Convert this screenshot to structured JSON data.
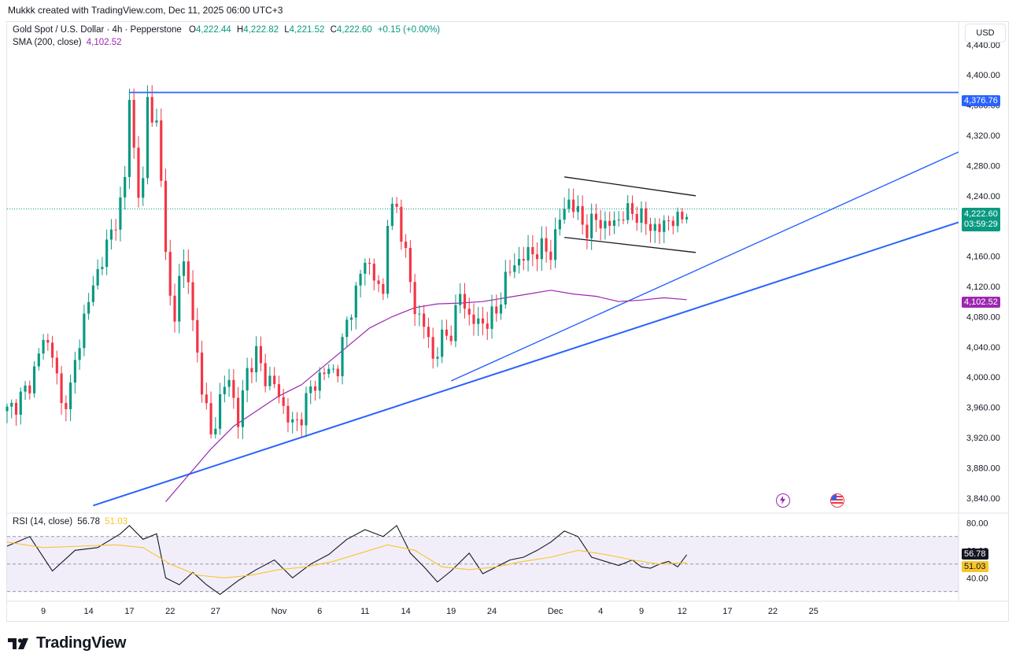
{
  "header": {
    "text": "Mukkk created with TradingView.com, Dec 11, 2025 06:00 UTC+3"
  },
  "legend": {
    "symbol": "Gold Spot / U.S. Dollar · 4h · Pepperstone",
    "open_label": "O",
    "open": "4,222.44",
    "high_label": "H",
    "high": "4,222.82",
    "low_label": "L",
    "low": "4,221.52",
    "close_label": "C",
    "close": "4,222.60",
    "change": "+0.15 (+0.00%)",
    "sma_label": "SMA (200, close)",
    "sma_value": "4,102.52",
    "rsi_label": "RSI (14, close)",
    "rsi_value": "56.78",
    "rsi_ma_value": "51.03"
  },
  "currency_button": "USD",
  "tags": {
    "resistance": "4,376.76",
    "last_price": "4,222.60",
    "countdown": "03:59:29",
    "sma": "4,102.52",
    "rsi": "56.78",
    "rsi_ma": "51.03"
  },
  "branding": {
    "name": "TradingView"
  },
  "icons": {
    "events": [
      "lightning-event-icon",
      "us-flag-event-icon"
    ]
  },
  "colors": {
    "up": "#089981",
    "down": "#f23645",
    "sma": "#9c27b0",
    "trend": "#2962ff",
    "rsi": "#131722",
    "rsi_ma": "#f7c52b",
    "rsi_band": "#7e57c2"
  },
  "chart_data": [
    {
      "type": "candlestick",
      "title": "Gold Spot / U.S. Dollar · 4h · Pepperstone",
      "y_ticks": [
        "4,440.00",
        "4,400.00",
        "4,360.00",
        "4,320.00",
        "4,280.00",
        "4,240.00",
        "4,200.00",
        "4,160.00",
        "4,120.00",
        "4,080.00",
        "4,040.00",
        "4,000.00",
        "3,960.00",
        "3,920.00",
        "3,880.00",
        "3,840.00"
      ],
      "x_ticks": [
        "9",
        "14",
        "17",
        "22",
        "27",
        "Nov",
        "6",
        "11",
        "14",
        "19",
        "24",
        "Dec",
        "4",
        "9",
        "12",
        "17",
        "22",
        "25"
      ],
      "ylim": [
        3820,
        4470
      ],
      "price_path": [
        [
          0,
          3955
        ],
        [
          2,
          3965
        ],
        [
          5,
          3990
        ],
        [
          8,
          4050
        ],
        [
          10,
          4035
        ],
        [
          12,
          3960
        ],
        [
          14,
          3985
        ],
        [
          17,
          4080
        ],
        [
          20,
          4140
        ],
        [
          23,
          4190
        ],
        [
          25,
          4230
        ],
        [
          26,
          4260
        ],
        [
          27,
          4375
        ],
        [
          28,
          4300
        ],
        [
          29,
          4240
        ],
        [
          30,
          4260
        ],
        [
          31,
          4368
        ],
        [
          33,
          4330
        ],
        [
          35,
          4180
        ],
        [
          36,
          4100
        ],
        [
          37,
          4070
        ],
        [
          38,
          4140
        ],
        [
          39,
          4150
        ],
        [
          40,
          4130
        ],
        [
          41,
          4070
        ],
        [
          43,
          3990
        ],
        [
          45,
          3920
        ],
        [
          47,
          3970
        ],
        [
          49,
          4000
        ],
        [
          51,
          3940
        ],
        [
          53,
          4010
        ],
        [
          55,
          4030
        ],
        [
          57,
          4000
        ],
        [
          59,
          3990
        ],
        [
          61,
          3960
        ],
        [
          63,
          3935
        ],
        [
          65,
          3950
        ],
        [
          67,
          3985
        ],
        [
          69,
          4000
        ],
        [
          71,
          4010
        ],
        [
          73,
          4010
        ],
        [
          75,
          4075
        ],
        [
          77,
          4110
        ],
        [
          79,
          4160
        ],
        [
          81,
          4130
        ],
        [
          83,
          4110
        ],
        [
          84,
          4210
        ],
        [
          86,
          4225
        ],
        [
          88,
          4160
        ],
        [
          90,
          4090
        ],
        [
          92,
          4070
        ],
        [
          94,
          4025
        ],
        [
          96,
          4050
        ],
        [
          98,
          4060
        ],
        [
          100,
          4110
        ],
        [
          102,
          4080
        ],
        [
          104,
          4070
        ],
        [
          106,
          4075
        ],
        [
          108,
          4085
        ],
        [
          110,
          4130
        ],
        [
          112,
          4150
        ],
        [
          114,
          4160
        ],
        [
          116,
          4165
        ],
        [
          118,
          4170
        ],
        [
          120,
          4165
        ],
        [
          122,
          4210
        ],
        [
          124,
          4235
        ],
        [
          126,
          4215
        ],
        [
          128,
          4195
        ],
        [
          130,
          4210
        ],
        [
          132,
          4200
        ],
        [
          134,
          4205
        ],
        [
          136,
          4215
        ],
        [
          138,
          4220
        ],
        [
          140,
          4210
        ],
        [
          142,
          4200
        ],
        [
          144,
          4195
        ],
        [
          146,
          4210
        ],
        [
          148,
          4205
        ],
        [
          150,
          4222
        ]
      ],
      "sma_200": [
        [
          35,
          3835
        ],
        [
          40,
          3870
        ],
        [
          45,
          3905
        ],
        [
          50,
          3935
        ],
        [
          55,
          3955
        ],
        [
          60,
          3975
        ],
        [
          65,
          3990
        ],
        [
          70,
          4015
        ],
        [
          75,
          4040
        ],
        [
          80,
          4065
        ],
        [
          85,
          4080
        ],
        [
          90,
          4092
        ],
        [
          95,
          4097
        ],
        [
          100,
          4098
        ],
        [
          105,
          4100
        ],
        [
          110,
          4105
        ],
        [
          115,
          4110
        ],
        [
          120,
          4115
        ],
        [
          125,
          4110
        ],
        [
          130,
          4107
        ],
        [
          135,
          4100
        ],
        [
          140,
          4102
        ],
        [
          145,
          4105
        ],
        [
          150,
          4102.52
        ]
      ],
      "annotations": {
        "horizontal_resistance": 4376.76,
        "trendlines": [
          {
            "from": [
              19,
              3830
            ],
            "to": [
              210,
              4205
            ]
          },
          {
            "from": [
              98,
              3995
            ],
            "to": [
              210,
              4298
            ]
          }
        ],
        "channel": [
          {
            "from": [
              123,
              4265
            ],
            "to": [
              152,
              4240
            ]
          },
          {
            "from": [
              123,
              4185
            ],
            "to": [
              152,
              4165
            ]
          }
        ]
      }
    },
    {
      "type": "line",
      "title": "RSI (14, close)",
      "y_ticks": [
        "80.00",
        "60.00",
        "40.00"
      ],
      "ylim": [
        23,
        87
      ],
      "band": [
        30,
        70
      ],
      "series": [
        {
          "name": "RSI",
          "values": [
            [
              0,
              63
            ],
            [
              5,
              70
            ],
            [
              10,
              45
            ],
            [
              15,
              60
            ],
            [
              20,
              62
            ],
            [
              25,
              72
            ],
            [
              27,
              78
            ],
            [
              30,
              68
            ],
            [
              33,
              72
            ],
            [
              35,
              40
            ],
            [
              38,
              35
            ],
            [
              41,
              44
            ],
            [
              44,
              35
            ],
            [
              47,
              28
            ],
            [
              51,
              38
            ],
            [
              55,
              46
            ],
            [
              59,
              53
            ],
            [
              63,
              40
            ],
            [
              67,
              50
            ],
            [
              71,
              57
            ],
            [
              75,
              68
            ],
            [
              79,
              75
            ],
            [
              83,
              70
            ],
            [
              86,
              78
            ],
            [
              89,
              58
            ],
            [
              92,
              48
            ],
            [
              95,
              37
            ],
            [
              98,
              45
            ],
            [
              102,
              58
            ],
            [
              105,
              43
            ],
            [
              108,
              48
            ],
            [
              111,
              53
            ],
            [
              114,
              55
            ],
            [
              117,
              60
            ],
            [
              120,
              66
            ],
            [
              123,
              74
            ],
            [
              126,
              70
            ],
            [
              129,
              55
            ],
            [
              132,
              52
            ],
            [
              135,
              49
            ],
            [
              138,
              53
            ],
            [
              140,
              48
            ],
            [
              142,
              47
            ],
            [
              144,
              50
            ],
            [
              146,
              52
            ],
            [
              148,
              48
            ],
            [
              150,
              56.78
            ]
          ]
        },
        {
          "name": "RSI MA",
          "values": [
            [
              0,
              66
            ],
            [
              8,
              62
            ],
            [
              16,
              63
            ],
            [
              24,
              64
            ],
            [
              30,
              62
            ],
            [
              36,
              50
            ],
            [
              42,
              42
            ],
            [
              48,
              40
            ],
            [
              54,
              42
            ],
            [
              60,
              46
            ],
            [
              66,
              48
            ],
            [
              72,
              52
            ],
            [
              78,
              58
            ],
            [
              84,
              64
            ],
            [
              90,
              60
            ],
            [
              96,
              48
            ],
            [
              102,
              46
            ],
            [
              108,
              48
            ],
            [
              114,
              52
            ],
            [
              120,
              55
            ],
            [
              126,
              60
            ],
            [
              132,
              57
            ],
            [
              138,
              53
            ],
            [
              144,
              50
            ],
            [
              150,
              51.03
            ]
          ]
        }
      ]
    }
  ]
}
